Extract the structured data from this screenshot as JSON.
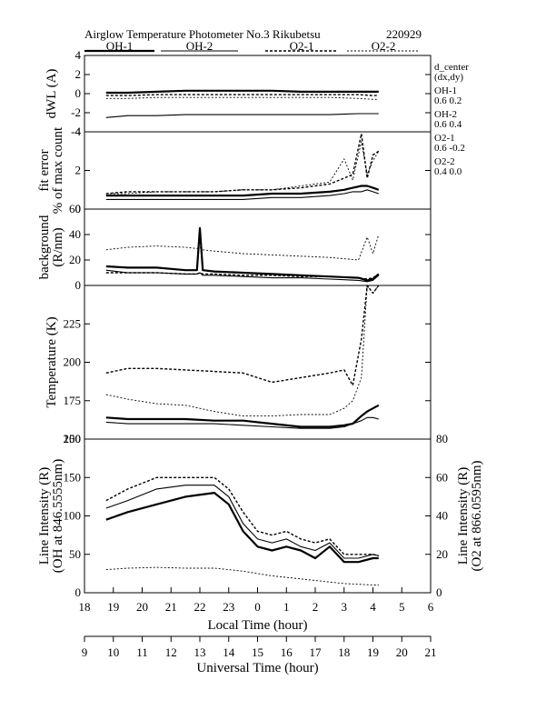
{
  "title": {
    "main": "Airglow Temperature Photometer No.3  Rikubetsu",
    "date": "220929"
  },
  "legend": [
    {
      "name": "OH-1",
      "style": "thick"
    },
    {
      "name": "OH-2",
      "style": "thin"
    },
    {
      "name": "O2-1",
      "style": "dotted-bold"
    },
    {
      "name": "O2-2",
      "style": "dotted-thin"
    }
  ],
  "side_labels": {
    "d_center": "d_center",
    "dxdy": "(dx,dy)",
    "oh1_name": "OH-1",
    "oh1_val": "0.6   0.2",
    "oh2_name": "OH-2",
    "oh2_val": "0.6   0.4",
    "o21_name": "O2-1",
    "o21_val": "0.6   -0.2",
    "o22_name": "O2-2",
    "o22_val": "0.4   0.0"
  },
  "x_axes": {
    "local": {
      "label": "Local Time (hour)",
      "ticks": [
        "18",
        "19",
        "20",
        "21",
        "22",
        "23",
        "0",
        "1",
        "2",
        "3",
        "4",
        "5",
        "6"
      ]
    },
    "universal": {
      "label": "Universal Time (hour)",
      "ticks": [
        "9",
        "10",
        "11",
        "12",
        "13",
        "14",
        "15",
        "16",
        "17",
        "18",
        "19",
        "20",
        "21"
      ]
    }
  },
  "chart_data": [
    {
      "panel": "dwl",
      "type": "line",
      "ylabel": "dWL (A)",
      "ylim": [
        -4,
        4
      ],
      "yticks": [
        "4",
        "2",
        "0",
        "-2",
        "-4"
      ],
      "x": [
        18.75,
        19.5,
        20.5,
        21.5,
        22.5,
        23.5,
        24.5,
        25.5,
        26.5,
        27.5,
        28.0,
        28.2
      ],
      "series": [
        {
          "name": "OH-1",
          "values": [
            0.1,
            0.1,
            0.2,
            0.3,
            0.3,
            0.3,
            0.3,
            0.2,
            0.2,
            0.2,
            0.2,
            0.2
          ]
        },
        {
          "name": "OH-2",
          "values": [
            -2.5,
            -2.3,
            -2.3,
            -2.2,
            -2.2,
            -2.2,
            -2.2,
            -2.2,
            -2.2,
            -2.1,
            -2.1,
            -2.1
          ]
        },
        {
          "name": "O2-1",
          "values": [
            -0.2,
            -0.2,
            -0.1,
            -0.1,
            -0.1,
            -0.1,
            -0.1,
            -0.1,
            -0.1,
            -0.1,
            -0.2,
            -0.2
          ]
        },
        {
          "name": "O2-2",
          "values": [
            -0.5,
            -0.5,
            -0.4,
            -0.4,
            -0.4,
            -0.4,
            -0.4,
            -0.4,
            -0.4,
            -0.5,
            -0.6,
            -0.6
          ]
        }
      ]
    },
    {
      "panel": "fit_error",
      "type": "line",
      "ylabel": "fit error",
      "ylabel2": "% of max count",
      "ylim": [
        0,
        4
      ],
      "yticks": [
        "4",
        "2",
        "0"
      ],
      "x": [
        18.75,
        19.5,
        20.5,
        21.5,
        22.5,
        23.5,
        24.5,
        25.5,
        26.5,
        27.0,
        27.3,
        27.6,
        27.8,
        28.0,
        28.2
      ],
      "series": [
        {
          "name": "OH-1",
          "values": [
            0.7,
            0.7,
            0.7,
            0.7,
            0.7,
            0.7,
            0.8,
            0.8,
            0.9,
            1.0,
            1.1,
            1.2,
            1.2,
            1.1,
            1.0
          ]
        },
        {
          "name": "OH-2",
          "values": [
            0.5,
            0.5,
            0.5,
            0.5,
            0.5,
            0.5,
            0.6,
            0.6,
            0.7,
            0.8,
            0.9,
            0.9,
            1.0,
            0.9,
            0.8
          ]
        },
        {
          "name": "O2-1",
          "values": [
            0.8,
            0.9,
            0.9,
            0.9,
            0.9,
            1.0,
            1.0,
            1.1,
            1.3,
            1.6,
            1.8,
            3.9,
            1.6,
            2.8,
            3.0
          ]
        },
        {
          "name": "O2-2",
          "values": [
            0.8,
            0.8,
            0.9,
            0.9,
            0.9,
            1.0,
            1.0,
            1.2,
            1.4,
            2.6,
            1.5,
            3.5,
            1.8,
            2.5,
            3.0
          ]
        }
      ]
    },
    {
      "panel": "background",
      "type": "line",
      "ylabel": "background",
      "ylabel2": "(R/nm)",
      "ylim": [
        0,
        60
      ],
      "yticks": [
        "60",
        "40",
        "20",
        "0"
      ],
      "x": [
        18.75,
        19.5,
        20.5,
        21.5,
        21.9,
        22.0,
        22.1,
        22.5,
        23.5,
        24.5,
        25.5,
        26.5,
        27.5,
        27.8,
        28.0,
        28.2
      ],
      "series": [
        {
          "name": "OH-1",
          "values": [
            15,
            14,
            14,
            12,
            12,
            45,
            12,
            11,
            10,
            9,
            8,
            7,
            6,
            4,
            5,
            9
          ]
        },
        {
          "name": "OH-2",
          "values": [
            12,
            10,
            10,
            9,
            9,
            10,
            8,
            8,
            7,
            6,
            6,
            5,
            4,
            3,
            4,
            8
          ]
        },
        {
          "name": "O2-1",
          "values": [
            10,
            10,
            10,
            9,
            9,
            10,
            9,
            9,
            8,
            8,
            7,
            7,
            6,
            5,
            6,
            9
          ]
        },
        {
          "name": "O2-2",
          "values": [
            28,
            30,
            31,
            30,
            29,
            30,
            28,
            27,
            25,
            24,
            23,
            22,
            20,
            38,
            25,
            40
          ]
        }
      ]
    },
    {
      "panel": "temperature",
      "type": "line",
      "ylabel": "Temperature (K)",
      "ylim": [
        150,
        250
      ],
      "yticks": [
        "225",
        "200",
        "175",
        "150"
      ],
      "x": [
        18.75,
        19.5,
        20.5,
        21.5,
        22.5,
        23.5,
        24.5,
        25.5,
        26.5,
        27.0,
        27.3,
        27.6,
        27.8,
        28.0,
        28.2
      ],
      "series": [
        {
          "name": "OH-1",
          "values": [
            164,
            163,
            163,
            163,
            162,
            162,
            160,
            158,
            158,
            159,
            160,
            165,
            168,
            170,
            172
          ]
        },
        {
          "name": "OH-2",
          "values": [
            161,
            160,
            160,
            160,
            160,
            159,
            158,
            157,
            157,
            158,
            160,
            162,
            164,
            164,
            163
          ]
        },
        {
          "name": "O2-1",
          "values": [
            193,
            196,
            196,
            195,
            194,
            193,
            187,
            190,
            193,
            195,
            185,
            215,
            250,
            245,
            250
          ]
        },
        {
          "name": "O2-2",
          "values": [
            179,
            176,
            173,
            172,
            168,
            165,
            165,
            166,
            166,
            170,
            175,
            190,
            250,
            245,
            250
          ]
        }
      ]
    },
    {
      "panel": "line_intensity",
      "type": "line",
      "ylabel": "Line Intensity (R)",
      "ylabel2": "(OH at 846.5555nm)",
      "ylabel_right": "Line Intensity (R)",
      "ylabel_right2": "(O2 at 866.0595nm)",
      "ylim": [
        0,
        200
      ],
      "ylim_right": [
        0,
        80
      ],
      "yticks": [
        "200",
        "150",
        "100",
        "50",
        "0"
      ],
      "yticks_right": [
        "80",
        "60",
        "40",
        "20",
        "0"
      ],
      "x": [
        18.75,
        19.5,
        20.5,
        21.5,
        22.5,
        23.0,
        23.5,
        24.0,
        24.5,
        25.0,
        25.5,
        26.0,
        26.5,
        27.0,
        27.5,
        28.0,
        28.2
      ],
      "series": [
        {
          "name": "OH-1",
          "values": [
            95,
            105,
            115,
            125,
            130,
            115,
            80,
            60,
            55,
            60,
            55,
            45,
            60,
            40,
            40,
            45,
            45
          ]
        },
        {
          "name": "OH-2",
          "values": [
            110,
            120,
            135,
            140,
            140,
            125,
            90,
            70,
            65,
            70,
            60,
            55,
            65,
            45,
            45,
            50,
            48
          ]
        },
        {
          "name": "O2-1",
          "values": [
            120,
            135,
            150,
            150,
            150,
            135,
            105,
            80,
            75,
            80,
            70,
            65,
            70,
            50,
            50,
            50,
            48
          ]
        },
        {
          "name": "O2-2",
          "values": [
            30,
            32,
            33,
            32,
            32,
            30,
            28,
            25,
            22,
            20,
            18,
            16,
            14,
            12,
            11,
            10,
            10
          ]
        }
      ]
    }
  ]
}
